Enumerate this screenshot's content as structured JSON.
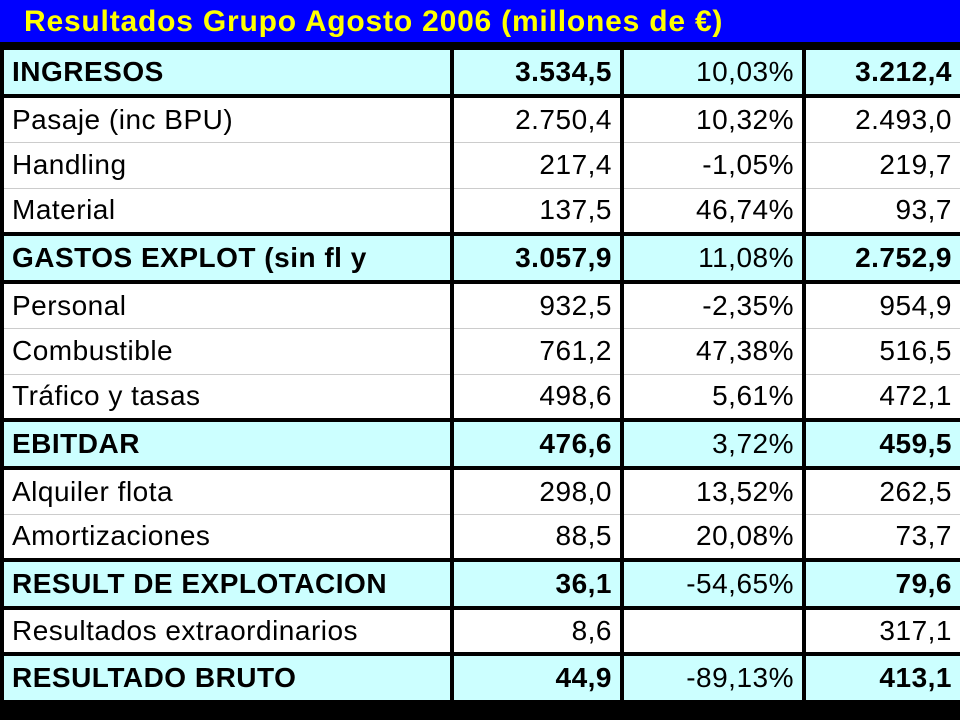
{
  "title": "Resultados Grupo Agosto 2006  (millones de €)",
  "colors": {
    "title_background": "#0000ff",
    "title_text": "#ffff00",
    "header_row_background": "#ccffff",
    "detail_row_background": "#ffffff",
    "grid_lines": "#000000"
  },
  "rows": [
    {
      "type": "header",
      "label": "INGRESOS",
      "col1": "3.534,5",
      "col2": "10,03%",
      "col3": "3.212,4"
    },
    {
      "type": "detail",
      "label": "Pasaje (inc BPU)",
      "col1": "2.750,4",
      "col2": "10,32%",
      "col3": "2.493,0"
    },
    {
      "type": "detail",
      "label": "Handling",
      "col1": "217,4",
      "col2": "-1,05%",
      "col3": "219,7"
    },
    {
      "type": "detail",
      "label": "Material",
      "col1": "137,5",
      "col2": "46,74%",
      "col3": "93,7"
    },
    {
      "type": "header",
      "label": "GASTOS EXPLOT (sin fl y",
      "col1": "3.057,9",
      "col2": "11,08%",
      "col3": "2.752,9"
    },
    {
      "type": "detail",
      "label": "Personal",
      "col1": "932,5",
      "col2": "-2,35%",
      "col3": "954,9"
    },
    {
      "type": "detail",
      "label": "Combustible",
      "col1": "761,2",
      "col2": "47,38%",
      "col3": "516,5"
    },
    {
      "type": "detail",
      "label": "Tráfico y tasas",
      "col1": "498,6",
      "col2": "5,61%",
      "col3": "472,1"
    },
    {
      "type": "header",
      "label": "EBITDAR",
      "col1": "476,6",
      "col2": "3,72%",
      "col3": "459,5"
    },
    {
      "type": "detail",
      "label": "Alquiler flota",
      "col1": "298,0",
      "col2": "13,52%",
      "col3": "262,5"
    },
    {
      "type": "detail",
      "label": "Amortizaciones",
      "col1": "88,5",
      "col2": "20,08%",
      "col3": "73,7"
    },
    {
      "type": "header",
      "label": "RESULT DE EXPLOTACION",
      "col1": "36,1",
      "col2": "-54,65%",
      "col3": "79,6"
    },
    {
      "type": "detail",
      "label": "Resultados extraordinarios",
      "col1": "8,6",
      "col2": "",
      "col3": "317,1"
    },
    {
      "type": "header",
      "label": "RESULTADO BRUTO",
      "col1": "44,9",
      "col2": "-89,13%",
      "col3": "413,1"
    }
  ]
}
